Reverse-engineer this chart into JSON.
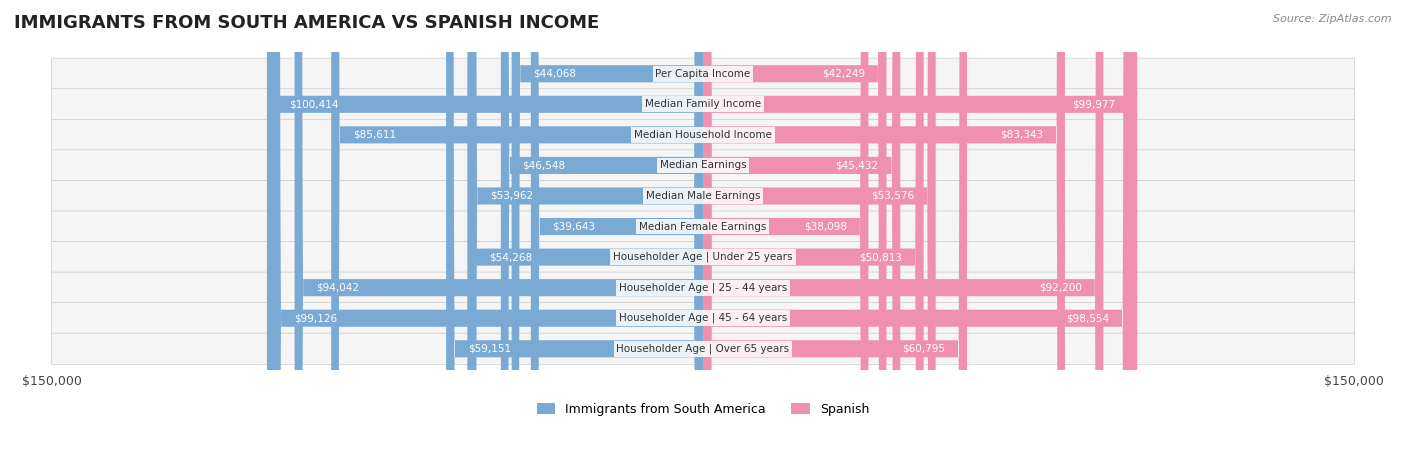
{
  "title": "IMMIGRANTS FROM SOUTH AMERICA VS SPANISH INCOME",
  "source": "Source: ZipAtlas.com",
  "categories": [
    "Per Capita Income",
    "Median Family Income",
    "Median Household Income",
    "Median Earnings",
    "Median Male Earnings",
    "Median Female Earnings",
    "Householder Age | Under 25 years",
    "Householder Age | 25 - 44 years",
    "Householder Age | 45 - 64 years",
    "Householder Age | Over 65 years"
  ],
  "immigrants_values": [
    44068,
    100414,
    85611,
    46548,
    53962,
    39643,
    54268,
    94042,
    99126,
    59151
  ],
  "spanish_values": [
    42249,
    99977,
    83343,
    45432,
    53576,
    38098,
    50813,
    92200,
    98554,
    60795
  ],
  "immigrants_labels": [
    "$44,068",
    "$100,414",
    "$85,611",
    "$46,548",
    "$53,962",
    "$39,643",
    "$54,268",
    "$94,042",
    "$99,126",
    "$59,151"
  ],
  "spanish_labels": [
    "$42,249",
    "$99,977",
    "$83,343",
    "$45,432",
    "$53,576",
    "$38,098",
    "$50,813",
    "$92,200",
    "$98,554",
    "$60,795"
  ],
  "immigrants_color": "#7aaad4",
  "spanish_color": "#f090b0",
  "immigrants_color_dark": "#4a7aaa",
  "spanish_color_dark": "#e06090",
  "label_color_outside": "#666666",
  "label_color_inside": "#ffffff",
  "max_value": 150000,
  "background_color": "#ffffff",
  "row_bg_color": "#f5f5f5",
  "legend_immigrants": "Immigrants from South America",
  "legend_spanish": "Spanish"
}
